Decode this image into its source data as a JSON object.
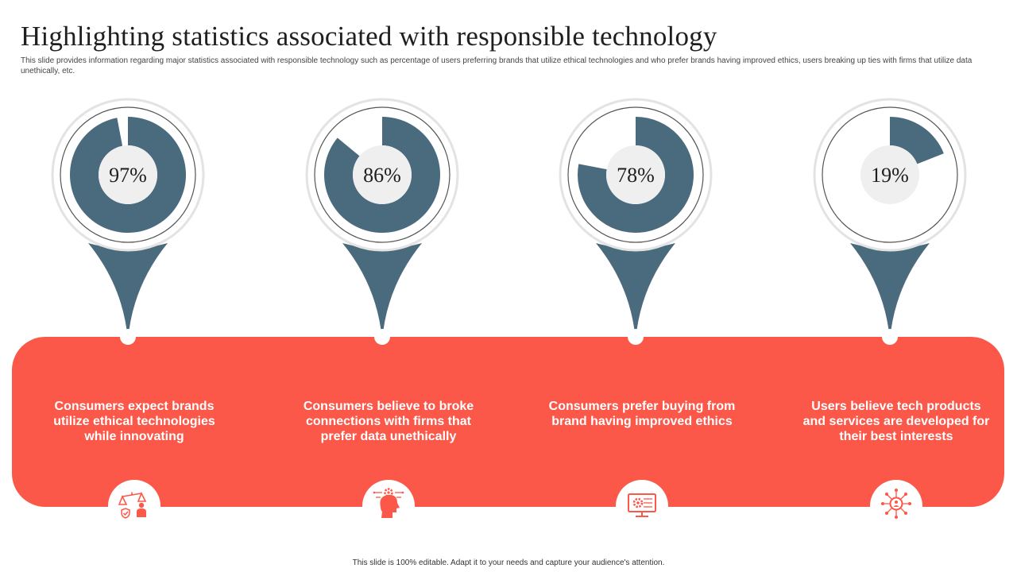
{
  "header": {
    "title": "Highlighting statistics associated with responsible technology",
    "subtitle": "This slide provides information regarding major  statistics associated with responsible technology such as percentage of users preferring brands that utilize ethical technologies and  who prefer brands having improved ethics, users breaking up ties with firms that utilize data unethically, etc."
  },
  "chart_data": {
    "type": "pie",
    "values": [
      97,
      86,
      78,
      19
    ],
    "value_labels": [
      "97%",
      "86%",
      "78%",
      "19%"
    ],
    "categories": [
      "Consumers expect brands utilize ethical technologies while innovating",
      "Consumers believe to broke connections with firms that prefer data unethically",
      "Consumers prefer buying from brand having improved ethics",
      "Users believe tech products and services are developed for their best interests"
    ],
    "max": 100,
    "fill_color": "#4a6a7d",
    "band_color": "#fb5849"
  },
  "items": [
    {
      "icon": "scales-person-icon"
    },
    {
      "icon": "head-gear-icon"
    },
    {
      "icon": "monitor-gear-icon"
    },
    {
      "icon": "network-user-icon"
    }
  ],
  "footer": {
    "text": "This slide is 100% editable. Adapt it to your needs and capture your audience's attention."
  }
}
